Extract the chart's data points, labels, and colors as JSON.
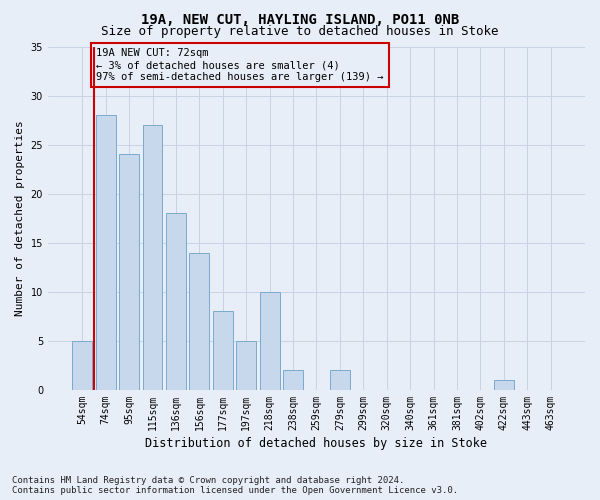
{
  "title": "19A, NEW CUT, HAYLING ISLAND, PO11 0NB",
  "subtitle": "Size of property relative to detached houses in Stoke",
  "xlabel": "Distribution of detached houses by size in Stoke",
  "ylabel": "Number of detached properties",
  "categories": [
    "54sqm",
    "74sqm",
    "95sqm",
    "115sqm",
    "136sqm",
    "156sqm",
    "177sqm",
    "197sqm",
    "218sqm",
    "238sqm",
    "259sqm",
    "279sqm",
    "299sqm",
    "320sqm",
    "340sqm",
    "361sqm",
    "381sqm",
    "402sqm",
    "422sqm",
    "443sqm",
    "463sqm"
  ],
  "values": [
    5,
    28,
    24,
    27,
    18,
    14,
    8,
    5,
    10,
    2,
    0,
    2,
    0,
    0,
    0,
    0,
    0,
    0,
    1,
    0,
    0
  ],
  "bar_color": "#c8d8ec",
  "bar_edge_color": "#7aaace",
  "grid_color": "#c8d4e4",
  "background_color": "#e8eef8",
  "annotation_box_color": "#cc0000",
  "annotation_text": "19A NEW CUT: 72sqm\n← 3% of detached houses are smaller (4)\n97% of semi-detached houses are larger (139) →",
  "ref_line_color": "#cc0000",
  "ref_line_x": 0.5,
  "ylim": [
    0,
    35
  ],
  "yticks": [
    0,
    5,
    10,
    15,
    20,
    25,
    30,
    35
  ],
  "footnote": "Contains HM Land Registry data © Crown copyright and database right 2024.\nContains public sector information licensed under the Open Government Licence v3.0.",
  "title_fontsize": 10,
  "subtitle_fontsize": 9,
  "xlabel_fontsize": 8.5,
  "ylabel_fontsize": 8,
  "tick_fontsize": 7,
  "annot_fontsize": 7.5,
  "footnote_fontsize": 6.5
}
